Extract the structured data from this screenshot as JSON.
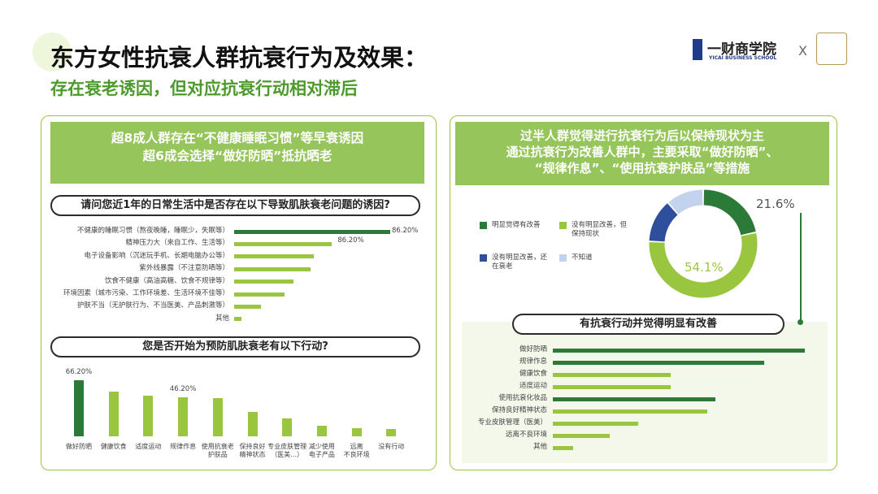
{
  "header": {
    "title": "东方女性抗衰人群抗衰行为及效果：",
    "subtitle": "存在衰老诱因，但对应抗衰行动相对滞后",
    "logo_name": "一财商学院",
    "logo_sub": "YICAI BUSINESS SCHOOL",
    "logo_separator": "X"
  },
  "left_panel": {
    "summary": [
      "超8成人群存在“不健康睡眠习惯”等早衰诱因",
      "超6成会选择“做好防晒”抵抗晒老"
    ]
  },
  "right_panel": {
    "summary": [
      "过半人群觉得进行抗衰行为后以保持现状为主",
      "通过抗衰行为改善人群中，主要采取“做好防晒”、",
      "“规律作息”、“使用抗衰护肤品”等措施"
    ]
  },
  "chart_data": [
    {
      "type": "hbar",
      "title": "请问您近1年的日常生活中是否存在以下导致肌肤衰老问题的诱因?",
      "categories": [
        "不健康的睡眠习惯（熬夜晚睡，睡眠少，失眠等）",
        "精神压力大（来自工作、生活等）",
        "电子设备影响（沉迷玩手机、长期电脑办公等）",
        "紫外线暴露（不注意防晒等）",
        "饮食不健康（高油高糖、饮食不规律等）",
        "环境因素（城市污染、工作环境差、生活环境不佳等）",
        "护肤不当（无护肤行为、不当医美、产品刺激等）",
        "其他"
      ],
      "values": [
        86.2,
        54,
        44,
        42,
        33,
        28,
        15,
        4
      ],
      "value_labels": [
        "86.20%",
        null,
        null,
        null,
        null,
        null,
        null,
        null
      ],
      "annotations": [
        "86.20%"
      ],
      "colors": [
        "#2b7a37",
        "#9ac63f",
        "#9ac63f",
        "#9ac63f",
        "#9ac63f",
        "#9ac63f",
        "#9ac63f",
        "#9ac63f"
      ]
    },
    {
      "type": "bar",
      "title": "您是否开始为预防肌肤衰老有以下行动?",
      "categories": [
        "做好防晒",
        "健康饮食",
        "适度运动",
        "规律作息",
        "使用抗衰老\n护肤品",
        "保持良好\n精神状态",
        "专业皮肤管理\n（医美…）",
        "减少使用\n电子产品",
        "远离\n不良环境",
        "没有行动"
      ],
      "values": [
        66.2,
        53,
        48,
        46.2,
        45,
        29,
        21,
        12,
        10,
        9
      ],
      "value_labels": [
        "66.20%",
        null,
        null,
        "46.20%",
        null,
        null,
        null,
        null,
        null,
        null
      ],
      "colors": [
        "#2b7a37",
        "#9ac63f",
        "#9ac63f",
        "#9ac63f",
        "#9ac63f",
        "#9ac63f",
        "#9ac63f",
        "#9ac63f",
        "#9ac63f",
        "#9ac63f"
      ]
    },
    {
      "type": "pie",
      "categories": [
        "明显觉得有改善",
        "没有明显改善，但保持现状",
        "没有明显改善，还在衰老",
        "不知道"
      ],
      "values": [
        21.6,
        54.1,
        13,
        11.3
      ],
      "value_labels": [
        "21.6%",
        "54.1%",
        null,
        null
      ],
      "colors": [
        "#2b7a37",
        "#9ac63f",
        "#2d4f9c",
        "#c3d3ee"
      ]
    },
    {
      "type": "hbar",
      "title": "有抗衰行动并觉得明显有改善",
      "categories": [
        "做好防晒",
        "规律作息",
        "健康饮食",
        "适度运动",
        "使用抗衰化妆品",
        "保持良好精神状态",
        "专业皮肤管理（医美）",
        "远离不良环境",
        "其他"
      ],
      "values": [
        62,
        52,
        29,
        29,
        40,
        38,
        21,
        14,
        5
      ],
      "colors": [
        "#2b7a37",
        "#2b7a37",
        "#9ac63f",
        "#9ac63f",
        "#2b7a37",
        "#9ac63f",
        "#9ac63f",
        "#9ac63f",
        "#9ac63f"
      ]
    }
  ]
}
